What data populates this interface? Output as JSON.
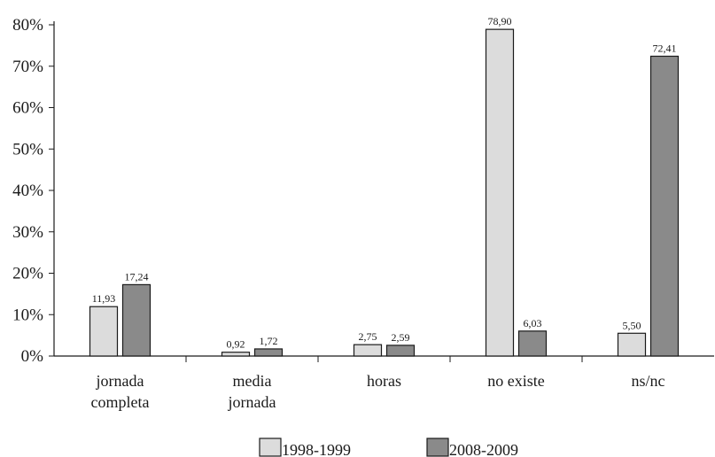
{
  "chart_data": {
    "type": "bar",
    "categories": [
      [
        "jornada",
        "completa"
      ],
      [
        "media",
        "jornada"
      ],
      [
        "horas"
      ],
      [
        "no existe"
      ],
      [
        "ns/nc"
      ]
    ],
    "series": [
      {
        "name": "1998-1999",
        "color": "#dcdcdc",
        "values": [
          11.93,
          0.92,
          2.75,
          78.9,
          5.5
        ],
        "labels": [
          "11,93",
          "0,92",
          "2,75",
          "78,90",
          "5,50"
        ]
      },
      {
        "name": "2008-2009",
        "color": "#8a8a8a",
        "values": [
          17.24,
          1.72,
          2.59,
          6.03,
          72.41
        ],
        "labels": [
          "17,24",
          "1,72",
          "2,59",
          "6,03",
          "72,41"
        ]
      }
    ],
    "y_ticks": [
      "0%",
      "10%",
      "20%",
      "30%",
      "40%",
      "50%",
      "60%",
      "70%",
      "80%"
    ],
    "ylim": [
      0,
      80
    ],
    "grid": false,
    "legend_position": "bottom-center"
  }
}
